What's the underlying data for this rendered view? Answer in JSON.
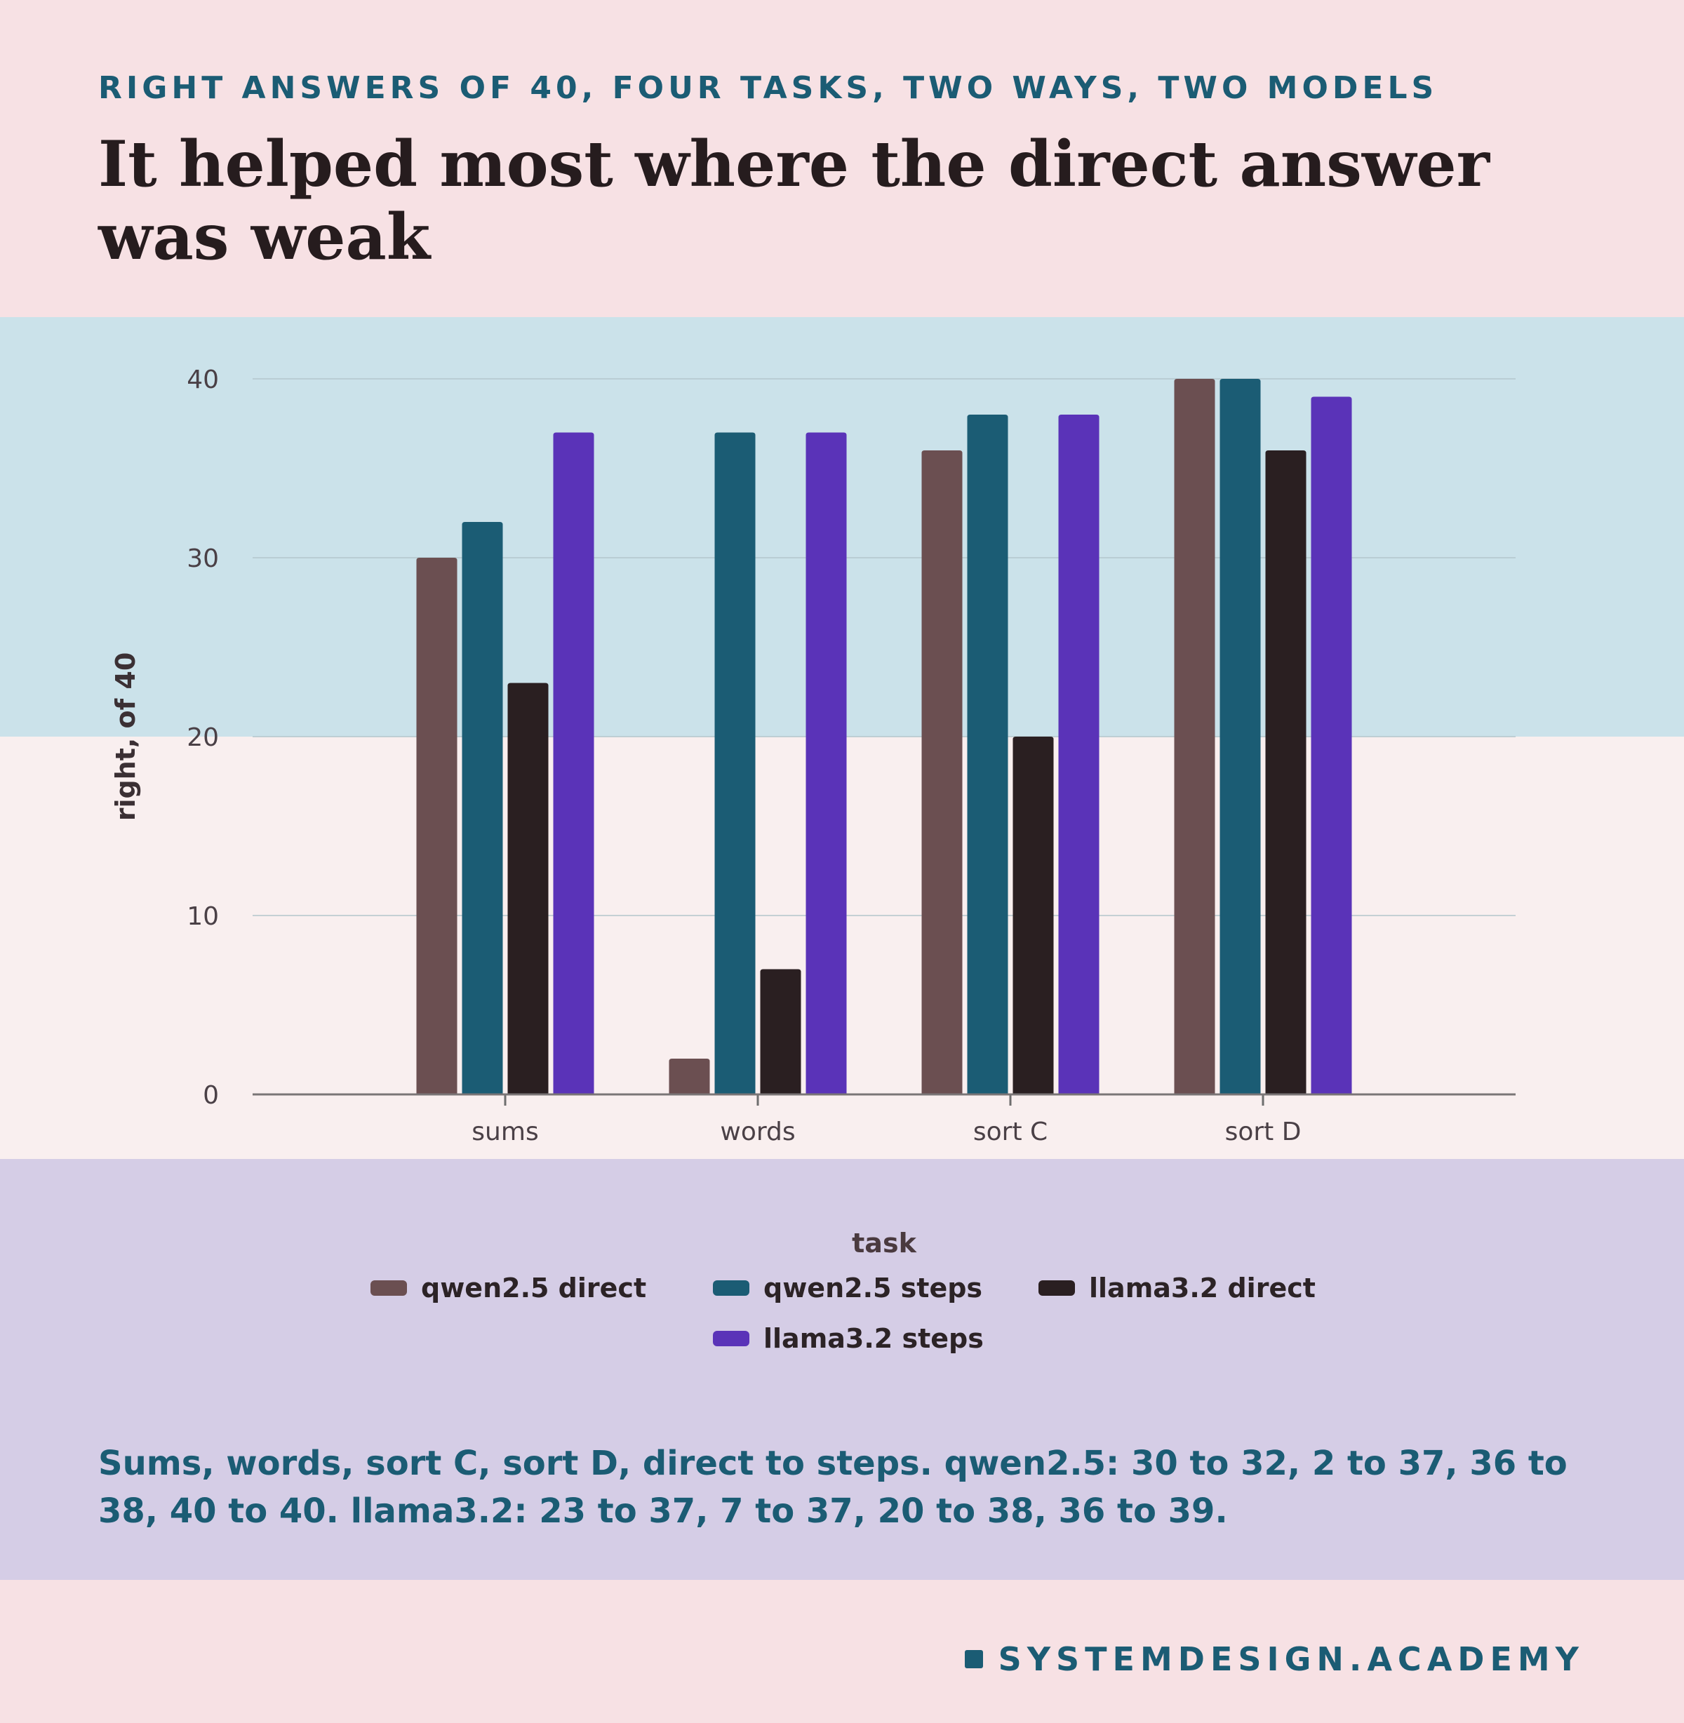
{
  "header": {
    "kicker": "RIGHT ANSWERS OF 40, FOUR TASKS, TWO WAYS, TWO MODELS",
    "title": "It helped most where the direct answer was weak"
  },
  "chart_data": {
    "type": "bar",
    "title": "It helped most where the direct answer was weak",
    "xlabel": "task",
    "ylabel": "right, of 40",
    "categories": [
      "sums",
      "words",
      "sort C",
      "sort D"
    ],
    "series": [
      {
        "name": "qwen2.5 direct",
        "color": "#6b4f51",
        "values": [
          30,
          2,
          36,
          40
        ]
      },
      {
        "name": "qwen2.5 steps",
        "color": "#1b5c74",
        "values": [
          32,
          37,
          38,
          40
        ]
      },
      {
        "name": "llama3.2 direct",
        "color": "#2a1f21",
        "values": [
          23,
          7,
          20,
          36
        ]
      },
      {
        "name": "llama3.2 steps",
        "color": "#5a33b8",
        "values": [
          37,
          37,
          38,
          39
        ]
      }
    ],
    "ylim": [
      0,
      40
    ],
    "yticks": [
      0,
      10,
      20,
      30,
      40
    ],
    "grid": true,
    "legend_position": "bottom",
    "highlight_band": {
      "from": 20,
      "to": 40,
      "color": "#cbe2ea"
    },
    "lower_band_color": "#f9efef"
  },
  "summary": "Sums, words, sort C, sort D, direct to steps. qwen2.5: 30 to 32, 2 to 37, 36 to 38, 40 to 40. llama3.2: 23 to 37, 7 to 37, 20 to 38, 36 to 39.",
  "footer": {
    "brand": "SYSTEMDESIGN.ACADEMY"
  }
}
